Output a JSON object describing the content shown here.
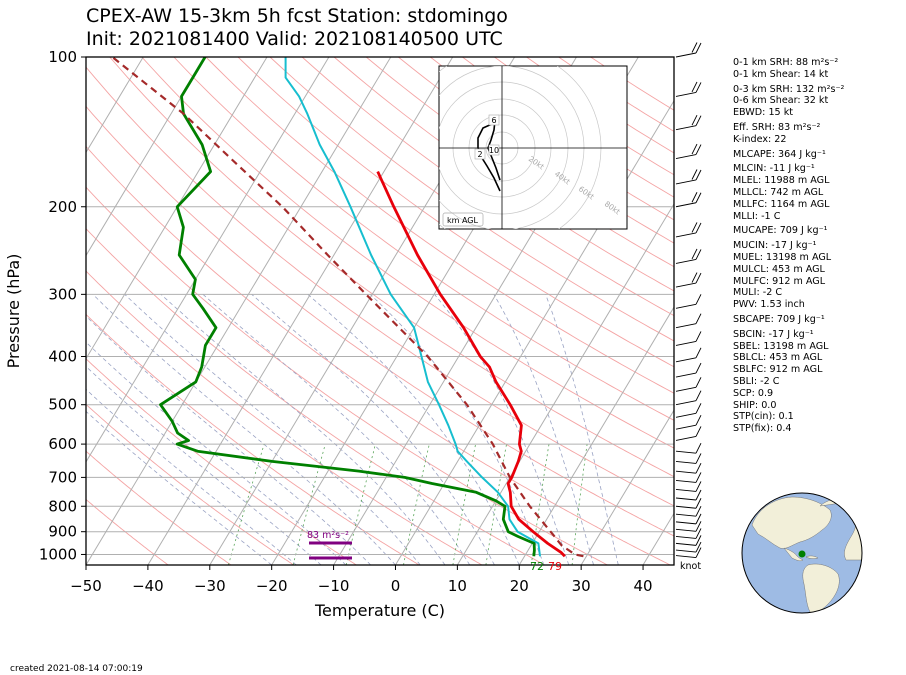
{
  "title_line1": "CPEX-AW 15-3km  5h fcst  Station: stdomingo",
  "title_line2": "Init: 2021081400  Valid: 202108140500 UTC",
  "footer": "created 2021-08-14 07:00:19",
  "chart_data": {
    "type": "skew-t",
    "xlabel": "Temperature (C)",
    "ylabel": "Pressure (hPa)",
    "xlim": [
      -50,
      45
    ],
    "ylim": [
      1050,
      100
    ],
    "y_scale": "log",
    "xticks": [
      -50,
      -40,
      -30,
      -20,
      -10,
      0,
      10,
      20,
      30,
      40
    ],
    "yticks": [
      100,
      200,
      300,
      400,
      500,
      600,
      700,
      800,
      900,
      1000
    ],
    "grid": true,
    "temperature": {
      "color": "#e8000b",
      "points": [
        [
          1008,
          26.5
        ],
        [
          990,
          25.5
        ],
        [
          950,
          22.5
        ],
        [
          900,
          19
        ],
        [
          850,
          15.5
        ],
        [
          800,
          13
        ],
        [
          750,
          11.5
        ],
        [
          720,
          10.3
        ],
        [
          700,
          10.3
        ],
        [
          650,
          9.8
        ],
        [
          620,
          9.3
        ],
        [
          600,
          8.3
        ],
        [
          550,
          6.8
        ],
        [
          500,
          3
        ],
        [
          450,
          -1.5
        ],
        [
          420,
          -4
        ],
        [
          400,
          -6.5
        ],
        [
          350,
          -12
        ],
        [
          300,
          -19
        ],
        [
          250,
          -26.5
        ],
        [
          200,
          -35
        ],
        [
          170,
          -41
        ]
      ]
    },
    "dewpoint": {
      "color": "#008000",
      "points": [
        [
          1008,
          21.5
        ],
        [
          980,
          21
        ],
        [
          950,
          20.3
        ],
        [
          920,
          17
        ],
        [
          900,
          15
        ],
        [
          850,
          13
        ],
        [
          800,
          12
        ],
        [
          780,
          10
        ],
        [
          750,
          6
        ],
        [
          720,
          -2
        ],
        [
          700,
          -7
        ],
        [
          680,
          -15
        ],
        [
          650,
          -30
        ],
        [
          620,
          -43
        ],
        [
          600,
          -47
        ],
        [
          590,
          -45.5
        ],
        [
          570,
          -48
        ],
        [
          540,
          -50
        ],
        [
          500,
          -53.5
        ],
        [
          450,
          -50
        ],
        [
          420,
          -50.5
        ],
        [
          380,
          -52
        ],
        [
          350,
          -52
        ],
        [
          320,
          -56
        ],
        [
          300,
          -59
        ],
        [
          280,
          -60
        ],
        [
          250,
          -65
        ],
        [
          220,
          -67
        ],
        [
          200,
          -70
        ],
        [
          170,
          -68
        ],
        [
          150,
          -72
        ],
        [
          130,
          -78
        ],
        [
          120,
          -80
        ],
        [
          110,
          -80
        ],
        [
          100,
          -80
        ]
      ]
    },
    "wetbulb": {
      "color": "#17becf",
      "points": [
        [
          1008,
          22.5
        ],
        [
          950,
          21
        ],
        [
          900,
          16.5
        ],
        [
          850,
          14
        ],
        [
          800,
          12.5
        ],
        [
          750,
          9.5
        ],
        [
          700,
          5.5
        ],
        [
          650,
          1.5
        ],
        [
          620,
          -1
        ],
        [
          600,
          -2
        ],
        [
          550,
          -5
        ],
        [
          500,
          -8.5
        ],
        [
          450,
          -12.5
        ],
        [
          400,
          -16
        ],
        [
          350,
          -20
        ],
        [
          300,
          -27
        ],
        [
          250,
          -34
        ],
        [
          200,
          -42
        ],
        [
          170,
          -48
        ],
        [
          150,
          -53
        ],
        [
          130,
          -58
        ],
        [
          120,
          -61
        ],
        [
          110,
          -65
        ],
        [
          100,
          -67
        ]
      ]
    },
    "parcel": {
      "color": "#a52a2a",
      "style": "dashed",
      "points": [
        [
          1008,
          29.5
        ],
        [
          1000,
          28
        ],
        [
          960,
          25
        ],
        [
          912,
          22.5
        ],
        [
          850,
          19
        ],
        [
          800,
          16
        ],
        [
          700,
          10
        ],
        [
          600,
          4
        ],
        [
          500,
          -4
        ],
        [
          400,
          -15
        ],
        [
          300,
          -31
        ],
        [
          250,
          -41
        ],
        [
          200,
          -53
        ],
        [
          160,
          -66
        ],
        [
          130,
          -78
        ],
        [
          100,
          -95
        ]
      ]
    },
    "surface_temp_label": "79",
    "surface_dewpoint_label": "72",
    "srh_bar_label": "83 m²s⁻²",
    "barb_unit_label": "knot",
    "hodograph": {
      "ring_labels": [
        "20kt",
        "40kt",
        "60kt",
        "80kt"
      ],
      "height_labels": [
        "6",
        "10",
        "2"
      ],
      "legend": "km AGL"
    },
    "inset_map": {
      "ocean_color": "#9ebbe4",
      "land_color": "#f2efd9",
      "marker_color": "#008000"
    }
  },
  "parameters": [
    "0-1 km SRH: 88 m²s⁻²",
    "0-1 km Shear: 14 kt",
    "0-3 km SRH: 132 m²s⁻²",
    "0-6 km Shear: 32 kt",
    "EBWD: 15 kt",
    "Eff. SRH: 83 m²s⁻²",
    "K-index: 22",
    "MLCAPE: 364 J kg⁻¹",
    "MLCIN: -11 J kg⁻¹",
    "MLEL: 11988 m AGL",
    "MLLCL: 742 m AGL",
    "MLLFC: 1164 m AGL",
    "MLLI: -1 C",
    "MUCAPE: 709 J kg⁻¹",
    "MUCIN: -17 J kg⁻¹",
    "MUEL: 13198 m AGL",
    "MULCL: 453 m AGL",
    "MULFC: 912 m AGL",
    "MULI: -2 C",
    "PWV: 1.53 inch",
    "SBCAPE: 709 J kg⁻¹",
    "SBCIN: -17 J kg⁻¹",
    "SBEL: 13198 m AGL",
    "SBLCL: 453 m AGL",
    "SBLFC: 912 m AGL",
    "SBLI: -2 C",
    "SCP: 0.9",
    "SHIP: 0.0",
    "STP(cin): 0.1",
    "STP(fix): 0.4"
  ]
}
